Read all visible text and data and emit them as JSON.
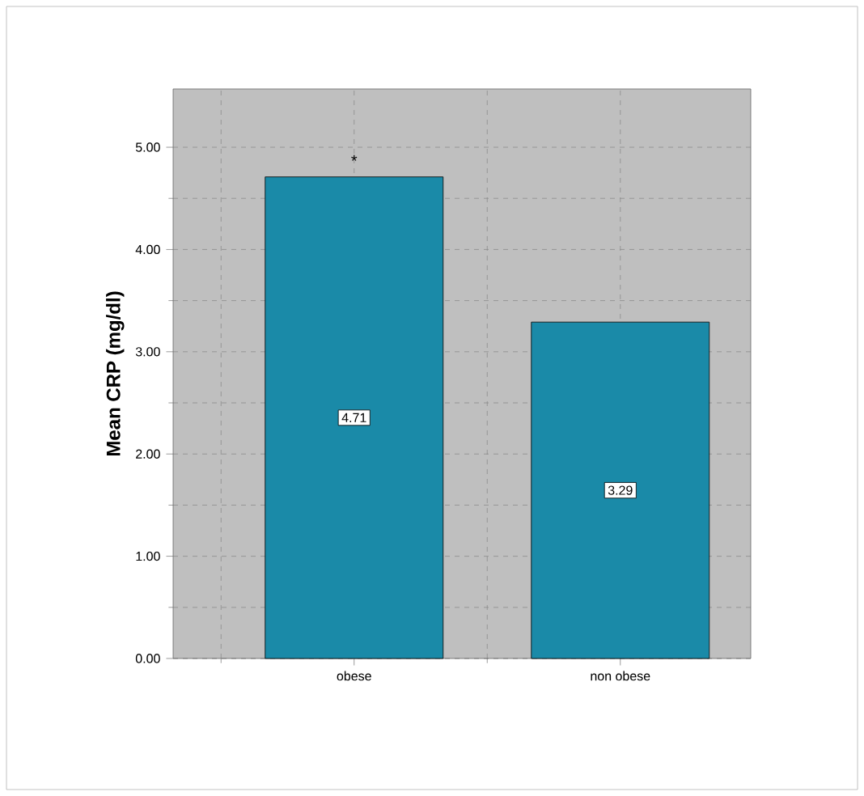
{
  "chart_data": {
    "type": "bar",
    "ylabel": "Mean CRP (mg/dl)",
    "categories": [
      "obese",
      "non obese"
    ],
    "values": [
      4.71,
      3.29
    ],
    "color": "#1a8aa8",
    "data_labels": true,
    "value_labels": [
      "4.71",
      "3.29"
    ],
    "annotations": [
      {
        "text": "*",
        "x": "obese",
        "y": 4.71
      }
    ],
    "ylim": [
      0,
      5.57
    ],
    "yticks": [
      {
        "value": 0,
        "label": "0.00"
      },
      {
        "value": 1,
        "label": "1.00"
      },
      {
        "value": 2,
        "label": "2.00"
      },
      {
        "value": 3,
        "label": "3.00"
      },
      {
        "value": 4,
        "label": "4.00"
      },
      {
        "value": 5,
        "label": "5.00"
      }
    ],
    "grid": true
  }
}
